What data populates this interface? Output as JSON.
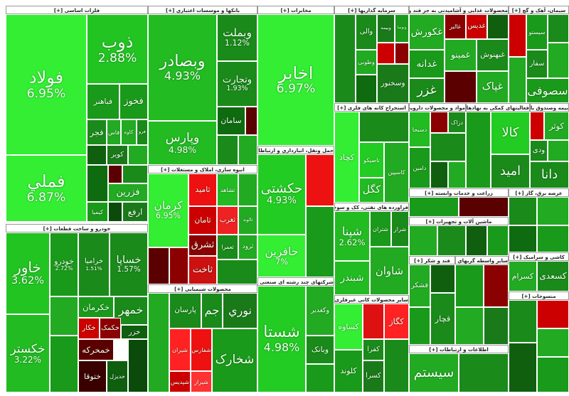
{
  "chart_data": {
    "type": "treemap",
    "sectors": [
      {
        "title": "فلزات اساسی [+]",
        "tiles": [
          {
            "label": "فولاد",
            "value": 6.95,
            "value_label": "6.95%",
            "color": "#33ee33"
          },
          {
            "label": "فملي",
            "value": 6.87,
            "value_label": "6.87%",
            "color": "#33ee33"
          },
          {
            "label": "ذوب",
            "value": 2.88,
            "value_label": "2.88%",
            "color": "#22c422"
          },
          {
            "label": "فباهنر",
            "color": "#1a9a1a"
          },
          {
            "label": "فخوز",
            "color": "#1a9a1a"
          },
          {
            "label": "فجر",
            "color": "#1a8a1a"
          },
          {
            "label": "فاس",
            "color": "#22aa22"
          },
          {
            "label": "کاوه",
            "color": "#22aa22"
          },
          {
            "label": "فرو",
            "color": "#1a8a1a"
          },
          {
            "label": "کویر",
            "color": "#1a7a1a"
          },
          {
            "color": "#0f5f0f"
          },
          {
            "color": "#22aa22"
          },
          {
            "color": "#0f6b0f"
          },
          {
            "color": "#5a0000"
          },
          {
            "color": "#1a8a1a"
          },
          {
            "label": "فزرين",
            "color": "#22aa22"
          },
          {
            "label": "کیمیا",
            "color": "#1a9a1a"
          },
          {
            "color": "#0a4a0a"
          },
          {
            "label": "ارفع",
            "color": "#1a7a1a"
          }
        ]
      },
      {
        "title": "خودرو و ساخت قطعات [+]",
        "tiles": [
          {
            "label": "خاور",
            "value": 3.62,
            "value_label": "3.62%",
            "color": "#22c422"
          },
          {
            "label": "خکستر",
            "value": 3.22,
            "value_label": "3.22%",
            "color": "#22bb22"
          },
          {
            "label": "خودرو",
            "value": 2.72,
            "value_label": "2.72%",
            "color": "#1a9a1a"
          },
          {
            "label": "خراميا",
            "value": 1.51,
            "value_label": "1.51%",
            "color": "#1a8a1a"
          },
          {
            "label": "خساپا",
            "value": 1.57,
            "value_label": "1.57%",
            "color": "#1a8a1a"
          },
          {
            "color": "#22aa22"
          },
          {
            "label": "خکرمان",
            "color": "#1a9a1a"
          },
          {
            "label": "خمهر",
            "color": "#1a8a1a"
          },
          {
            "label": "خکار",
            "color": "#cc0000"
          },
          {
            "label": "خکمک",
            "color": "#8b0000"
          },
          {
            "label": "خزر",
            "color": "#0f5f0f"
          },
          {
            "label": "خمحرکه",
            "color": "#5a0000"
          },
          {
            "label": "ختوقا",
            "color": "#3a0000"
          },
          {
            "label": "خدیزل",
            "color": "#0f5f0f"
          },
          {
            "color": "#1a9a1a"
          },
          {
            "color": "#0a4a0a"
          }
        ]
      },
      {
        "title": "بانکها و موسسات اعتباري [+]",
        "tiles": [
          {
            "label": "وبصادر",
            "value": 4.93,
            "value_label": "4.93%",
            "color": "#22bb22"
          },
          {
            "label": "وپارس",
            "value": 4.98,
            "value_label": "4.98%",
            "color": "#22bb22"
          },
          {
            "label": "وبملت",
            "value": 1.12,
            "value_label": "1.12%",
            "color": "#1a8a1a"
          },
          {
            "label": "وتجارت",
            "value": 1.93,
            "value_label": "1.93%",
            "color": "#1a8a1a"
          },
          {
            "label": "سامان",
            "color": "#0f6b0f"
          },
          {
            "color": "#5a0000"
          },
          {
            "color": "#1a8a1a"
          },
          {
            "color": "#22aa22"
          }
        ]
      },
      {
        "title": "انبوه سازی، املاک و مستغلات [+]",
        "tiles": [
          {
            "label": "کرمان",
            "value": 6.95,
            "value_label": "6.95%",
            "color": "#33ee33"
          },
          {
            "color": "#5a0000"
          },
          {
            "color": "#8b0000"
          },
          {
            "label": "ثامید",
            "color": "#ee1111"
          },
          {
            "label": "ثشاهد",
            "color": "#22bb22"
          },
          {
            "color": "#22aa22"
          },
          {
            "label": "ثامان",
            "color": "#cc0000"
          },
          {
            "label": "ثغرب",
            "color": "#ee2222"
          },
          {
            "label": "ثالوند",
            "color": "#22aa22"
          },
          {
            "label": "ثشرق",
            "color": "#8b0000"
          },
          {
            "label": "ثاخت",
            "color": "#cc1111"
          },
          {
            "label": "ثعمرا",
            "color": "#1a8a1a"
          },
          {
            "label": "ثرود",
            "color": "#22aa22"
          },
          {
            "color": "#1a8a1a"
          }
        ]
      },
      {
        "title": "محصولات شیمیایی [+]",
        "tiles": [
          {
            "color": "#22aa22"
          },
          {
            "label": "پارسان",
            "color": "#1a8a1a"
          },
          {
            "label": "شیران",
            "color": "#ff2222"
          },
          {
            "label": "شفارس",
            "color": "#ee1111"
          },
          {
            "label": "شپدیس",
            "color": "#cc0000"
          },
          {
            "label": "شیراز",
            "color": "#ff3333"
          },
          {
            "label": "جم",
            "color": "#1a8a1a"
          },
          {
            "label": "نوري",
            "color": "#1a7a1a"
          },
          {
            "label": "شخارک",
            "color": "#1a9a1a"
          }
        ]
      },
      {
        "title": "مخابرات [+]",
        "tiles": [
          {
            "label": "اخابر",
            "value": 6.97,
            "value_label": "6.97%",
            "color": "#33ee33"
          }
        ]
      },
      {
        "title": "حمل ونقل، انبارداري و ارتباطات [+]",
        "tiles": [
          {
            "label": "حکشتی",
            "value": 4.93,
            "value_label": "4.93%",
            "color": "#22cc22"
          },
          {
            "label": "حافرین",
            "value": 7,
            "value_label": "7%",
            "color": "#33ee33"
          },
          {
            "color": "#ee1111"
          },
          {
            "color": "#1a9a1a"
          }
        ]
      },
      {
        "title": "شرکتهای چند رشته ای صنعتی [+]",
        "tiles": [
          {
            "label": "شستا",
            "value": 4.98,
            "value_label": "4.98%",
            "color": "#22cc22"
          },
          {
            "label": "وکغدير",
            "color": "#22aa22"
          },
          {
            "label": "وبانک",
            "color": "#1a8a1a"
          },
          {
            "color": "#1a9a1a"
          }
        ]
      },
      {
        "title": "سرمایه گذاریها [+]",
        "tiles": [
          {
            "color": "#1a8a1a"
          },
          {
            "label": "والی",
            "color": "#1a8a1a"
          },
          {
            "label": "وبیمه",
            "color": "#1a7a1a"
          },
          {
            "label": "ونوسا",
            "color": "#1a9a1a"
          },
          {
            "label": "وطوبی",
            "color": "#22aa22"
          },
          {
            "color": "#cc0000"
          },
          {
            "color": "#8b0000"
          },
          {
            "label": "وسخنور",
            "color": "#1a7a1a"
          },
          {
            "color": "#0f6b0f"
          }
        ]
      },
      {
        "title": "استخراج کانه های فلزی [+]",
        "tiles": [
          {
            "label": "کچاد",
            "color": "#33ee33"
          },
          {
            "color": "#1a8a1a"
          },
          {
            "label": "تاصیکو",
            "color": "#22cc22"
          },
          {
            "label": "کگل",
            "color": "#22bb22"
          },
          {
            "label": "کاسپین",
            "color": "#22aa22"
          }
        ]
      },
      {
        "title": "فراورده های نفتی، کک و سوخت هسته ای [+]",
        "tiles": [
          {
            "label": "شپنا",
            "value": 2.62,
            "value_label": "2.62%",
            "color": "#22bb22"
          },
          {
            "label": "شبندر",
            "color": "#22bb22"
          },
          {
            "label": "شتران",
            "color": "#1a9a1a"
          },
          {
            "label": "شراز",
            "color": "#1a8a1a"
          },
          {
            "label": "شاوان",
            "color": "#22aa22"
          }
        ]
      },
      {
        "title": "سایر محصولات کانی غیرفلزی [+]",
        "tiles": [
          {
            "label": "کساوه",
            "color": "#33ee33"
          },
          {
            "color": "#dd1111"
          },
          {
            "label": "کگاز",
            "color": "#ff2222"
          },
          {
            "label": "کفرا",
            "color": "#1a8a1a"
          },
          {
            "label": "کلوند",
            "color": "#1a9a1a"
          },
          {
            "label": "کسرا",
            "color": "#1a7a1a"
          },
          {
            "color": "#1a8a1a"
          }
        ]
      },
      {
        "title": "محصولات غذایی و آشامیدنی به جز قند و شکر [+]",
        "tiles": [
          {
            "label": "غکورش",
            "color": "#22aa22"
          },
          {
            "label": "غالبر",
            "color": "#8b0000"
          },
          {
            "label": "غدیس",
            "color": "#cc0000"
          },
          {
            "color": "#0f5f0f"
          },
          {
            "label": "غدانه",
            "color": "#1a9a1a"
          },
          {
            "label": "غمینو",
            "color": "#22aa22"
          },
          {
            "label": "غبهنوش",
            "color": "#1a8a1a"
          },
          {
            "label": "غزر",
            "color": "#1a8a1a"
          },
          {
            "color": "#5a0000"
          },
          {
            "label": "غپاک",
            "color": "#22aa22"
          }
        ]
      },
      {
        "title": "سیمان، آهک و گچ [+]",
        "tiles": [
          {
            "color": "#cc0000"
          },
          {
            "label": "سیستو",
            "color": "#1a9a1a"
          },
          {
            "color": "#1a8a1a"
          },
          {
            "color": "#22aa22"
          },
          {
            "label": "سفار",
            "color": "#1a8a1a"
          },
          {
            "color": "#22aa22"
          },
          {
            "label": "سصوفی",
            "color": "#1a9a1a"
          }
        ]
      },
      {
        "title": "مواد و محصولات دارویی [+]",
        "tiles": [
          {
            "label": "دسبحا",
            "color": "#22bb22"
          },
          {
            "color": "#8b0000"
          },
          {
            "label": "دزاک",
            "color": "#1a8a1a"
          },
          {
            "color": "#1a8a1a"
          },
          {
            "label": "دامین",
            "color": "#1a9a1a"
          },
          {
            "color": "#0f5f0f"
          },
          {
            "color": "#22aa22"
          }
        ]
      },
      {
        "title": "فعالیتهای کمکی به نهادهای مالی [+]",
        "tiles": [
          {
            "color": "#1a9a1a"
          },
          {
            "label": "کالا",
            "color": "#22cc22"
          },
          {
            "label": "امید",
            "color": "#1a8a1a"
          }
        ]
      },
      {
        "title": "بیمه وصندوق بازنشستگی [+]",
        "tiles": [
          {
            "color": "#cc0000"
          },
          {
            "label": "کوثر",
            "color": "#22aa22"
          },
          {
            "label": "ودی",
            "color": "#1a8a1a"
          },
          {
            "color": "#22aa22"
          },
          {
            "label": "دانا",
            "color": "#1a8a1a"
          }
        ]
      },
      {
        "title": "زراعت و خدمات وابسته [+]",
        "tiles": [
          {
            "color": "#1a9a1a"
          },
          {
            "color": "#5a0000"
          }
        ]
      },
      {
        "title": "ماشین آلات و تجهیزات [+]",
        "tiles": [
          {
            "color": "#22aa22"
          },
          {
            "color": "#1a8a1a"
          },
          {
            "color": "#0f5f0f"
          },
          {
            "color": "#1a9a1a"
          }
        ]
      },
      {
        "title": "عرضه برق، گاز [+]",
        "tiles": [
          {
            "color": "#1a8a1a"
          },
          {
            "color": "#22aa22"
          },
          {
            "color": "#0f6b0f"
          },
          {
            "color": "#1a9a1a"
          }
        ]
      },
      {
        "title": "قند و شکر [+]",
        "tiles": [
          {
            "label": "قشکر",
            "color": "#22aa22"
          },
          {
            "color": "#0f5f0f"
          },
          {
            "label": "قچار",
            "color": "#1a8a1a"
          },
          {
            "color": "#1a9a1a"
          }
        ]
      },
      {
        "title": "ساير واسطه گريهاي مالي [+]",
        "tiles": [
          {
            "color": "#1a9a1a"
          },
          {
            "color": "#8b0000"
          },
          {
            "color": "#22aa22"
          },
          {
            "color": "#1a7a1a"
          }
        ]
      },
      {
        "title": "کاشی و سرامیک [+]",
        "tiles": [
          {
            "label": "کسرام",
            "color": "#22aa22"
          },
          {
            "label": "کسعدی",
            "color": "#1a8a1a"
          }
        ]
      },
      {
        "title": "منسوجات [+]",
        "tiles": [
          {
            "color": "#1a8a1a"
          },
          {
            "color": "#cc0000"
          },
          {
            "color": "#22aa22"
          },
          {
            "color": "#0f5f0f"
          },
          {
            "color": "#1a9a1a"
          }
        ]
      },
      {
        "title": "اطلاعات و ارتباطات [+]",
        "tiles": [
          {
            "label": "سیستم",
            "color": "#22aa22"
          },
          {
            "color": "#1a8a1a"
          }
        ]
      }
    ]
  }
}
